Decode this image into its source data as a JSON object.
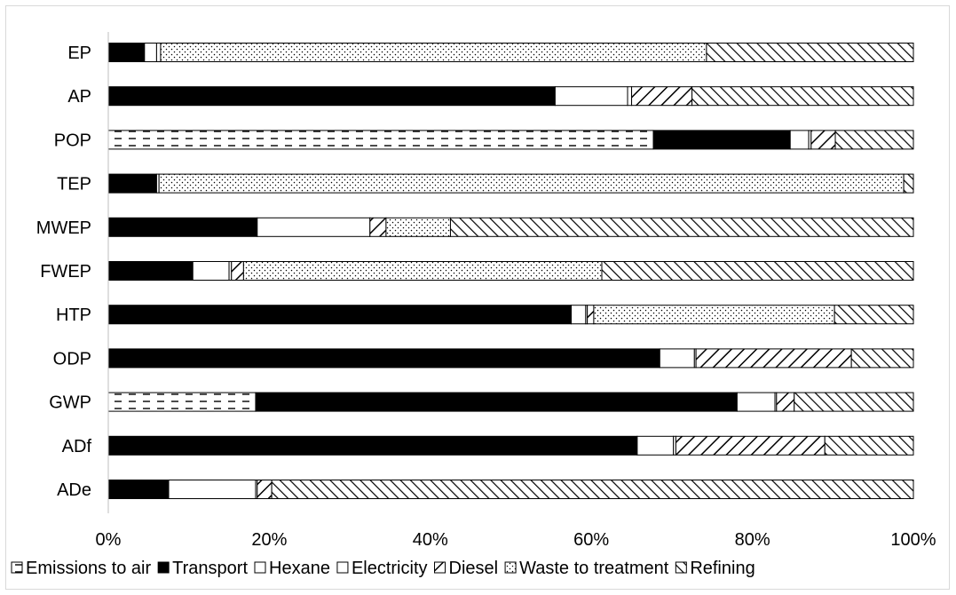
{
  "chart_data": {
    "type": "bar",
    "orientation": "horizontal",
    "stacked": "percent",
    "categories": [
      "EP",
      "AP",
      "POP",
      "TEP",
      "MWEP",
      "FWEP",
      "HTP",
      "ODP",
      "GWP",
      "ADf",
      "ADe"
    ],
    "series": [
      {
        "name": "Emissions to air",
        "pattern": "dashed",
        "values": [
          0,
          0,
          67.7,
          0,
          0,
          0,
          0,
          0,
          18.3,
          0,
          0
        ]
      },
      {
        "name": "Transport",
        "pattern": "solid-black",
        "values": [
          4.5,
          55.5,
          17,
          6,
          18.5,
          10.5,
          57.5,
          68.5,
          59.8,
          65.7,
          7.5
        ]
      },
      {
        "name": "Hexane",
        "pattern": "white",
        "values": [
          1.5,
          9,
          2.3,
          0,
          14,
          4.5,
          1.8,
          4.3,
          4.7,
          4.5,
          10.8
        ]
      },
      {
        "name": "Electricity",
        "pattern": "white",
        "values": [
          0.5,
          0.5,
          0.3,
          0.3,
          0,
          0.3,
          0.2,
          0.2,
          0.2,
          0.3,
          0.2
        ]
      },
      {
        "name": "Diesel",
        "pattern": "diagonal-wide",
        "values": [
          0,
          7.5,
          3,
          0,
          2,
          1.5,
          0.8,
          19.3,
          2.2,
          18.5,
          1.8
        ]
      },
      {
        "name": "Waste to treatment",
        "pattern": "dotted",
        "values": [
          67.8,
          0,
          0,
          92.5,
          8,
          44.5,
          29.9,
          0,
          0,
          0,
          0
        ]
      },
      {
        "name": "Refining",
        "pattern": "diagonal-dense",
        "values": [
          25.7,
          27.5,
          9.7,
          1.2,
          57.5,
          38.7,
          9.8,
          7.7,
          14.8,
          11,
          79.7
        ]
      }
    ],
    "x_ticks": [
      "0%",
      "20%",
      "40%",
      "60%",
      "80%",
      "100%"
    ],
    "xlim": [
      0,
      100
    ],
    "xlabel": "",
    "ylabel": "",
    "title": "",
    "legend": "bottom",
    "grid": false
  }
}
